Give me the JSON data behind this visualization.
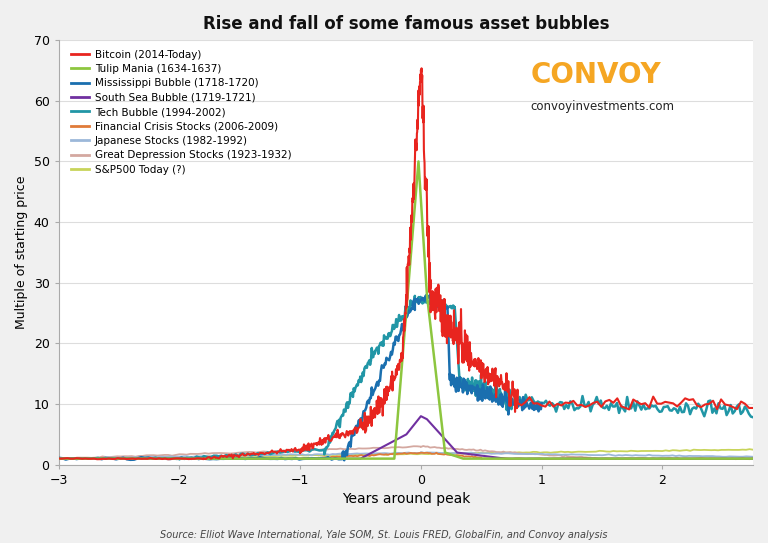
{
  "title": "Rise and fall of some famous asset bubbles",
  "xlabel": "Years around peak",
  "ylabel": "Multiple of starting price",
  "xlim": [
    -3,
    2.75
  ],
  "ylim": [
    0,
    70
  ],
  "yticks": [
    0,
    10,
    20,
    30,
    40,
    50,
    60,
    70
  ],
  "xticks": [
    -3,
    -2,
    -1,
    0,
    1,
    2
  ],
  "background_color": "#f0f0f0",
  "plot_bg_color": "#f5f5f5",
  "source_text": "Source: Elliot Wave International, Yale SOM, St. Louis FRED, GlobalFin, and Convoy analysis",
  "convoy_text": "CONVOY",
  "convoy_url": "convoyinvestments.com",
  "convoy_color": "#f5a623",
  "series": [
    {
      "name": "Bitcoin (2014-Today)",
      "color": "#e8251f",
      "linewidth": 1.5,
      "zorder": 10
    },
    {
      "name": "Tulip Mania (1634-1637)",
      "color": "#8dc63f",
      "linewidth": 1.8,
      "zorder": 9
    },
    {
      "name": "Mississippi Bubble (1718-1720)",
      "color": "#1a6faf",
      "linewidth": 1.8,
      "zorder": 8
    },
    {
      "name": "South Sea Bubble (1719-1721)",
      "color": "#7030a0",
      "linewidth": 1.5,
      "zorder": 7
    },
    {
      "name": "Tech Bubble (1994-2002)",
      "color": "#2196a6",
      "linewidth": 1.8,
      "zorder": 6
    },
    {
      "name": "Financial Crisis Stocks (2006-2009)",
      "color": "#e07b39",
      "linewidth": 1.3,
      "zorder": 5
    },
    {
      "name": "Japanese Stocks (1982-1992)",
      "color": "#9cb8d9",
      "linewidth": 1.3,
      "zorder": 4
    },
    {
      "name": "Great Depression Stocks (1923-1932)",
      "color": "#d4a8a0",
      "linewidth": 1.3,
      "zorder": 3
    },
    {
      "name": "S&P500 Today (?)",
      "color": "#c8d45a",
      "linewidth": 1.3,
      "zorder": 2
    }
  ]
}
